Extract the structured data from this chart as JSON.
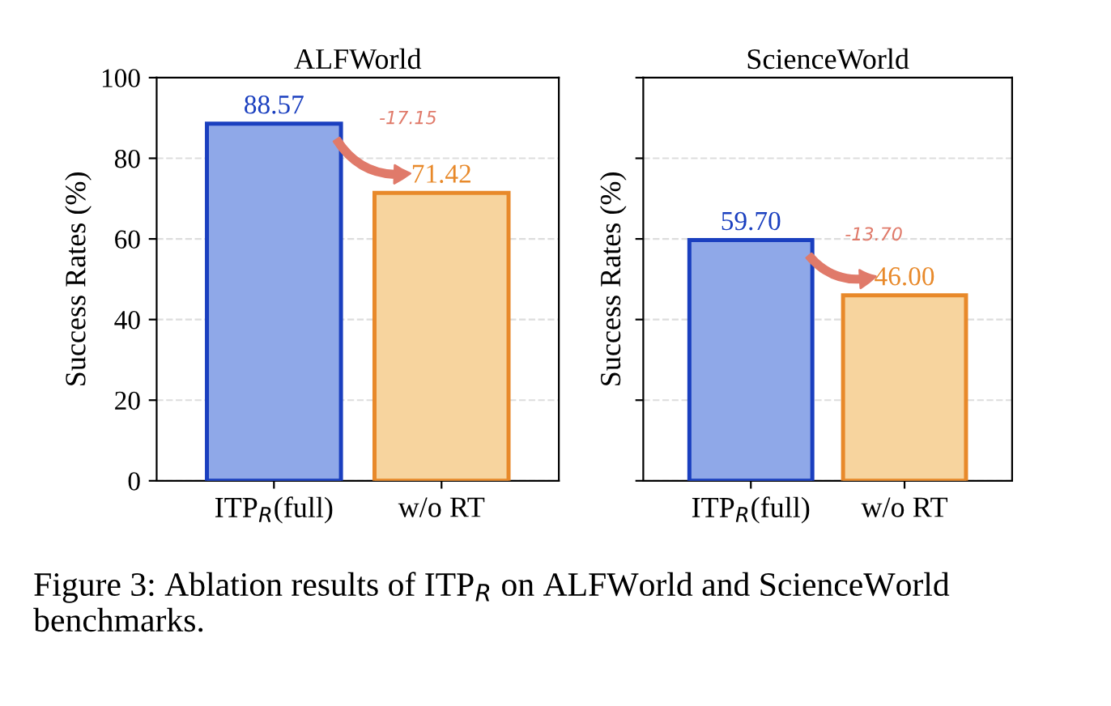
{
  "chart_data": [
    {
      "type": "bar",
      "title": "ALFWorld",
      "ylabel": "Success Rates (%)",
      "categories": [
        "ITP$_{R}$(full)",
        "w/o RT"
      ],
      "values": [
        88.57,
        71.42
      ],
      "colors": [
        "#8fa8e8",
        "#f7d49e"
      ],
      "value_labels": [
        "88.57",
        "71.42"
      ],
      "ylim": [
        0,
        100
      ],
      "yticks": [
        0,
        20,
        40,
        60,
        80,
        100
      ],
      "grid": "y",
      "annotations": [
        "-17.15",
        "Figure 3: Ablation results of ITP$_{R}$ on ALFWorld and ScienceWorld benchmarks."
      ]
    },
    {
      "type": "bar",
      "title": "ScienceWorld",
      "ylabel": "Success Rates (%)",
      "categories": [
        "ITP$_{R}$(full)",
        "w/o RT"
      ],
      "values": [
        59.7,
        46.0
      ],
      "colors": [
        "#8fa8e8",
        "#f7d49e"
      ],
      "value_labels": [
        "59.70",
        "46.00"
      ],
      "ylim": [
        0,
        100
      ],
      "yticks": [
        0,
        20,
        40,
        60,
        80,
        100
      ],
      "grid": "y",
      "tick_labels": "x",
      "annotations": [
        "-13.70"
      ]
    }
  ]
}
